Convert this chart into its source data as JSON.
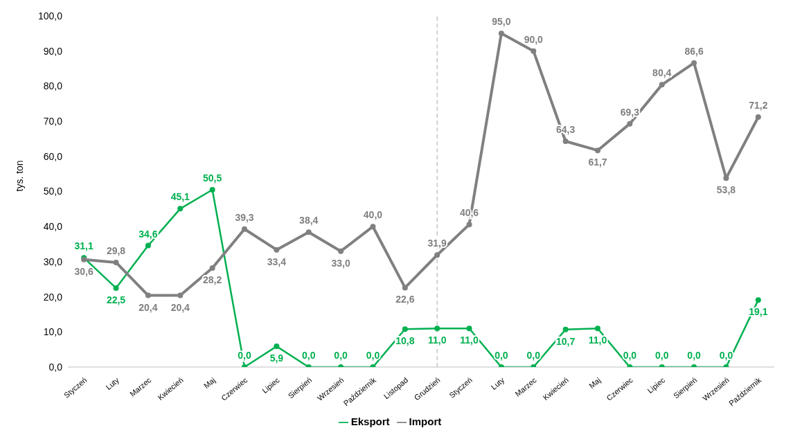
{
  "chart_data": {
    "type": "line",
    "ylabel": "tys. ton",
    "categories": [
      "Styczeń",
      "Luty",
      "Marzec",
      "Kwiecień",
      "Maj",
      "Czerwiec",
      "Lipiec",
      "Sierpień",
      "Wrzesień",
      "Październik",
      "Listopad",
      "Grudzień",
      "Styczeń",
      "Luty",
      "Marzec",
      "Kwiecień",
      "Maj",
      "Czerwiec",
      "Lipiec",
      "Sierpień",
      "Wrzesień",
      "Październik"
    ],
    "series": [
      {
        "name": "Eksport",
        "color": "#00b050",
        "values": [
          31.1,
          22.5,
          34.6,
          45.1,
          50.5,
          0.0,
          5.9,
          0.0,
          0.0,
          0.0,
          10.8,
          11.0,
          11.0,
          0.0,
          0.0,
          10.7,
          11.0,
          0.0,
          0.0,
          0.0,
          0.0,
          19.1
        ],
        "value_labels": [
          "31,1",
          "22,5",
          "34,6",
          "45,1",
          "50,5",
          "0,0",
          "5,9",
          "0,0",
          "0,0",
          "0,0",
          "10,8",
          "11,0",
          "11,0",
          "0,0",
          "0,0",
          "10,7",
          "11,0",
          "0,0",
          "0,0",
          "0,0",
          "0,0",
          "19,1"
        ]
      },
      {
        "name": "Import",
        "color": "#808080",
        "values": [
          30.6,
          29.8,
          20.4,
          20.4,
          28.2,
          39.3,
          33.4,
          38.4,
          33.0,
          40.0,
          22.6,
          31.9,
          40.6,
          95.0,
          90.0,
          64.3,
          61.7,
          69.3,
          80.4,
          86.6,
          53.8,
          71.2
        ],
        "value_labels": [
          "30,6",
          "29,8",
          "20,4",
          "20,4",
          "28,2",
          "39,3",
          "33,4",
          "38,4",
          "33,0",
          "40,0",
          "22,6",
          "31,9",
          "40,6",
          "95,0",
          "90,0",
          "64,3",
          "61,7",
          "69,3",
          "80,4",
          "86,6",
          "53,8",
          "71,2"
        ]
      }
    ],
    "ylim": [
      0,
      100
    ],
    "yticks": [
      {
        "value": 0,
        "label": "0,0"
      },
      {
        "value": 10,
        "label": "10,0"
      },
      {
        "value": 20,
        "label": "20,0"
      },
      {
        "value": 30,
        "label": "30,0"
      },
      {
        "value": 40,
        "label": "40,0"
      },
      {
        "value": 50,
        "label": "50,0"
      },
      {
        "value": 60,
        "label": "60,0"
      },
      {
        "value": 70,
        "label": "70,0"
      },
      {
        "value": 80,
        "label": "80,0"
      },
      {
        "value": 90,
        "label": "90,0"
      },
      {
        "value": 100,
        "label": "100,0"
      }
    ],
    "ref_lines": [
      {
        "axis": "x",
        "value": "Grudzień",
        "color": "#a6a6a6",
        "line_style": "dashed"
      }
    ],
    "grid": false,
    "legend": "bottom",
    "marker": "circle",
    "line_style": "solid"
  }
}
